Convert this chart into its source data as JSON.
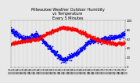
{
  "title": "Milwaukee Weather Outdoor Humidity\nvs Temperature\nEvery 5 Minutes",
  "title_fontsize": 3.5,
  "background_color": "#e8e8e8",
  "plot_bg_color": "#e8e8e8",
  "blue_color": "#0000ff",
  "red_color": "#ff0000",
  "ylim": [
    0,
    100
  ],
  "ytick_labels": [
    "0",
    "20",
    "40",
    "60",
    "80",
    "100"
  ],
  "ytick_values": [
    0,
    20,
    40,
    60,
    80,
    100
  ],
  "ytick_fontsize": 2.8,
  "xtick_fontsize": 2.2,
  "marker_size": 1.5,
  "seed": 7
}
